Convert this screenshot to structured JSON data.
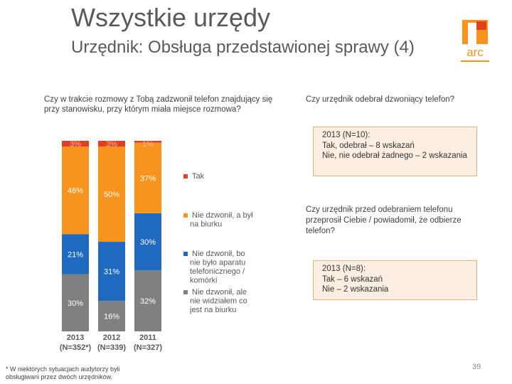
{
  "header": {
    "title": "Wszystkie urzędy",
    "subtitle": "Urzędnik: Obsługa przedstawionej sprawy (4)",
    "logo_text": "arc"
  },
  "questions": {
    "q1": "Czy w trakcie rozmowy z Tobą zadzwonił telefon znajdujący się przy stanowisku, przy którym miała miejsce rozmowa?",
    "q2": "Czy urzędnik odebrał dzwoniący telefon?",
    "q3": "Czy urzędnik przed odebraniem telefonu przeprosił Ciebie / powiadomił, że odbierze telefon?"
  },
  "answers": {
    "box1": [
      "2013 (N=10):",
      "Tak, odebrał – 8 wskazań",
      "Nie, nie odebrał żadnego – 2 wskazania"
    ],
    "box2": [
      "2013 (N=8):",
      "Tak – 6 wskazań",
      "Nie – 2 wskazania"
    ]
  },
  "colors": {
    "tak": "#e0401f",
    "no_desk": "#f7941d",
    "no_phone": "#1f6ac0",
    "no_seen": "#808080",
    "title": "#595959",
    "box_bg": "#fcefe1",
    "box_border": "#e6b07a"
  },
  "chart_data": {
    "type": "bar",
    "stacked": true,
    "categories": [
      "2013\n(N=352*)",
      "2012\n(N=339)",
      "2011\n(N=327)"
    ],
    "series": [
      {
        "name": "Nie dzwonił, ale nie widziałem co jest na biurku",
        "color_key": "no_seen",
        "values": [
          30,
          16,
          32
        ]
      },
      {
        "name": "Nie dzwonił, bo nie było aparatu telefonicznego / komórki",
        "color_key": "no_phone",
        "values": [
          21,
          31,
          30
        ]
      },
      {
        "name": "Nie dzwonił, a był na biurku",
        "color_key": "no_desk",
        "values": [
          46,
          50,
          37
        ]
      },
      {
        "name": "Tak",
        "color_key": "tak",
        "values": [
          3,
          3,
          1
        ]
      }
    ],
    "value_suffix": "%",
    "legend_position": "right",
    "ylim": [
      0,
      100
    ]
  },
  "footnote": "* W niektórych sytuacjach audytorzy byli obsługiwani przez dwóch urzędników.",
  "page_number": "39"
}
